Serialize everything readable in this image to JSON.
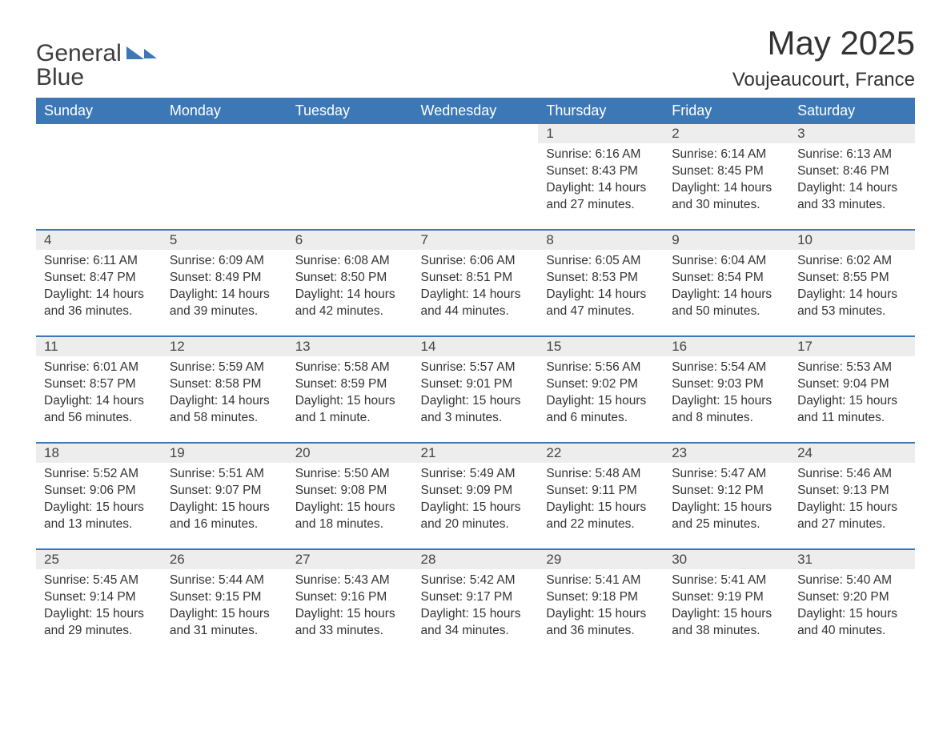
{
  "logo": {
    "text1": "General",
    "text2": "Blue"
  },
  "title": "May 2025",
  "location": "Voujeaucourt, France",
  "colors": {
    "header_bg": "#3d78b6",
    "header_text": "#ffffff",
    "daynum_bg": "#ededed",
    "border": "#3d78b6",
    "body_text": "#333333",
    "page_bg": "#ffffff"
  },
  "days_of_week": [
    "Sunday",
    "Monday",
    "Tuesday",
    "Wednesday",
    "Thursday",
    "Friday",
    "Saturday"
  ],
  "weeks": [
    [
      null,
      null,
      null,
      null,
      {
        "n": "1",
        "sr": "6:16 AM",
        "ss": "8:43 PM",
        "dl": "14 hours and 27 minutes."
      },
      {
        "n": "2",
        "sr": "6:14 AM",
        "ss": "8:45 PM",
        "dl": "14 hours and 30 minutes."
      },
      {
        "n": "3",
        "sr": "6:13 AM",
        "ss": "8:46 PM",
        "dl": "14 hours and 33 minutes."
      }
    ],
    [
      {
        "n": "4",
        "sr": "6:11 AM",
        "ss": "8:47 PM",
        "dl": "14 hours and 36 minutes."
      },
      {
        "n": "5",
        "sr": "6:09 AM",
        "ss": "8:49 PM",
        "dl": "14 hours and 39 minutes."
      },
      {
        "n": "6",
        "sr": "6:08 AM",
        "ss": "8:50 PM",
        "dl": "14 hours and 42 minutes."
      },
      {
        "n": "7",
        "sr": "6:06 AM",
        "ss": "8:51 PM",
        "dl": "14 hours and 44 minutes."
      },
      {
        "n": "8",
        "sr": "6:05 AM",
        "ss": "8:53 PM",
        "dl": "14 hours and 47 minutes."
      },
      {
        "n": "9",
        "sr": "6:04 AM",
        "ss": "8:54 PM",
        "dl": "14 hours and 50 minutes."
      },
      {
        "n": "10",
        "sr": "6:02 AM",
        "ss": "8:55 PM",
        "dl": "14 hours and 53 minutes."
      }
    ],
    [
      {
        "n": "11",
        "sr": "6:01 AM",
        "ss": "8:57 PM",
        "dl": "14 hours and 56 minutes."
      },
      {
        "n": "12",
        "sr": "5:59 AM",
        "ss": "8:58 PM",
        "dl": "14 hours and 58 minutes."
      },
      {
        "n": "13",
        "sr": "5:58 AM",
        "ss": "8:59 PM",
        "dl": "15 hours and 1 minute."
      },
      {
        "n": "14",
        "sr": "5:57 AM",
        "ss": "9:01 PM",
        "dl": "15 hours and 3 minutes."
      },
      {
        "n": "15",
        "sr": "5:56 AM",
        "ss": "9:02 PM",
        "dl": "15 hours and 6 minutes."
      },
      {
        "n": "16",
        "sr": "5:54 AM",
        "ss": "9:03 PM",
        "dl": "15 hours and 8 minutes."
      },
      {
        "n": "17",
        "sr": "5:53 AM",
        "ss": "9:04 PM",
        "dl": "15 hours and 11 minutes."
      }
    ],
    [
      {
        "n": "18",
        "sr": "5:52 AM",
        "ss": "9:06 PM",
        "dl": "15 hours and 13 minutes."
      },
      {
        "n": "19",
        "sr": "5:51 AM",
        "ss": "9:07 PM",
        "dl": "15 hours and 16 minutes."
      },
      {
        "n": "20",
        "sr": "5:50 AM",
        "ss": "9:08 PM",
        "dl": "15 hours and 18 minutes."
      },
      {
        "n": "21",
        "sr": "5:49 AM",
        "ss": "9:09 PM",
        "dl": "15 hours and 20 minutes."
      },
      {
        "n": "22",
        "sr": "5:48 AM",
        "ss": "9:11 PM",
        "dl": "15 hours and 22 minutes."
      },
      {
        "n": "23",
        "sr": "5:47 AM",
        "ss": "9:12 PM",
        "dl": "15 hours and 25 minutes."
      },
      {
        "n": "24",
        "sr": "5:46 AM",
        "ss": "9:13 PM",
        "dl": "15 hours and 27 minutes."
      }
    ],
    [
      {
        "n": "25",
        "sr": "5:45 AM",
        "ss": "9:14 PM",
        "dl": "15 hours and 29 minutes."
      },
      {
        "n": "26",
        "sr": "5:44 AM",
        "ss": "9:15 PM",
        "dl": "15 hours and 31 minutes."
      },
      {
        "n": "27",
        "sr": "5:43 AM",
        "ss": "9:16 PM",
        "dl": "15 hours and 33 minutes."
      },
      {
        "n": "28",
        "sr": "5:42 AM",
        "ss": "9:17 PM",
        "dl": "15 hours and 34 minutes."
      },
      {
        "n": "29",
        "sr": "5:41 AM",
        "ss": "9:18 PM",
        "dl": "15 hours and 36 minutes."
      },
      {
        "n": "30",
        "sr": "5:41 AM",
        "ss": "9:19 PM",
        "dl": "15 hours and 38 minutes."
      },
      {
        "n": "31",
        "sr": "5:40 AM",
        "ss": "9:20 PM",
        "dl": "15 hours and 40 minutes."
      }
    ]
  ],
  "labels": {
    "sunrise": "Sunrise: ",
    "sunset": "Sunset: ",
    "daylight": "Daylight: "
  }
}
